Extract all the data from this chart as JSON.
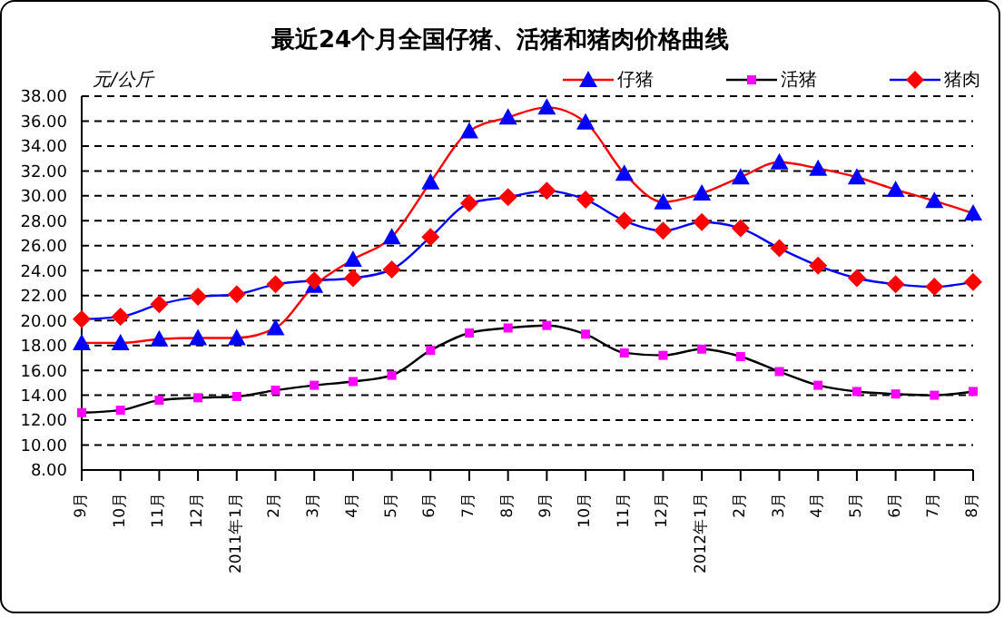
{
  "chart_data": {
    "type": "line",
    "title": "最近24个月全国仔猪、活猪和猪肉价格曲线",
    "ylabel": "元/公斤",
    "categories": [
      "9月",
      "10月",
      "11月",
      "12月",
      "2011年1月",
      "2月",
      "3月",
      "4月",
      "5月",
      "6月",
      "7月",
      "8月",
      "9月",
      "10月",
      "11月",
      "12月",
      "2012年1月",
      "2月",
      "3月",
      "4月",
      "5月",
      "6月",
      "7月",
      "8月"
    ],
    "series": [
      {
        "name": "仔猪",
        "color": "#ff0000",
        "marker": "triangle",
        "colors": [
          "#0000ff",
          "#0000ff",
          "#0000ff",
          "#0000ff",
          "#0000ff",
          "#0000ff",
          "#0000ff",
          "#0000ff",
          "#0000ff",
          "#0000ff",
          "#0000ff",
          "#0000ff",
          "#0000ff",
          "#0000ff",
          "#0000ff",
          "#0000ff",
          "#0000ff",
          "#0000ff",
          "#0000ff",
          "#0000ff",
          "#0000ff",
          "#0000ff",
          "#0000ff",
          "#0000ff"
        ],
        "values": [
          18.2,
          18.2,
          18.5,
          18.6,
          18.6,
          19.4,
          22.8,
          24.9,
          26.7,
          31.1,
          35.2,
          36.3,
          37.1,
          35.9,
          31.8,
          29.5,
          30.2,
          31.5,
          32.7,
          32.2,
          31.5,
          30.5,
          29.6,
          28.6
        ]
      },
      {
        "name": "活猪",
        "color": "#000000",
        "marker": "square",
        "colors": [
          "#ff00ff",
          "#ff00ff",
          "#ff00ff",
          "#ff00ff",
          "#ff00ff",
          "#ff00ff",
          "#ff00ff",
          "#ff00ff",
          "#ff00ff",
          "#ff00ff",
          "#ff00ff",
          "#ff00ff",
          "#ff00ff",
          "#ff00ff",
          "#ff00ff",
          "#ff00ff",
          "#ff00ff",
          "#ff00ff",
          "#ff00ff",
          "#ff00ff",
          "#ff00ff",
          "#ff00ff",
          "#ff00ff",
          "#ff00ff"
        ],
        "values": [
          12.6,
          12.8,
          13.6,
          13.8,
          13.9,
          14.4,
          14.8,
          15.1,
          15.6,
          17.6,
          19.0,
          19.4,
          19.6,
          18.9,
          17.4,
          17.2,
          17.7,
          17.1,
          15.9,
          14.8,
          14.3,
          14.1,
          14.0,
          14.3
        ]
      },
      {
        "name": "猪肉",
        "color": "#0000ff",
        "marker": "diamond",
        "colors": [
          "#ff0000",
          "#ff0000",
          "#ff0000",
          "#ff0000",
          "#ff0000",
          "#ff0000",
          "#ff0000",
          "#ff0000",
          "#ff0000",
          "#ff0000",
          "#ff0000",
          "#ff0000",
          "#ff0000",
          "#ff0000",
          "#ff0000",
          "#ff0000",
          "#ff0000",
          "#ff0000",
          "#ff0000",
          "#ff0000",
          "#ff0000",
          "#ff0000",
          "#ff0000",
          "#ff0000"
        ],
        "values": [
          20.1,
          20.3,
          21.3,
          21.9,
          22.1,
          22.9,
          23.2,
          23.4,
          24.1,
          26.7,
          29.4,
          29.9,
          30.4,
          29.7,
          28.0,
          27.2,
          27.9,
          27.4,
          25.8,
          24.4,
          23.4,
          22.9,
          22.7,
          23.1
        ]
      }
    ],
    "ylim": [
      8,
      38
    ],
    "yticks": [
      {
        "value": 8,
        "label": "8.00"
      },
      {
        "value": 10,
        "label": "10.00"
      },
      {
        "value": 12,
        "label": "12.00"
      },
      {
        "value": 14,
        "label": "14.00"
      },
      {
        "value": 16,
        "label": "16.00"
      },
      {
        "value": 18,
        "label": "18.00"
      },
      {
        "value": 20,
        "label": "20.00"
      },
      {
        "value": 22,
        "label": "22.00"
      },
      {
        "value": 24,
        "label": "24.00"
      },
      {
        "value": 26,
        "label": "26.00"
      },
      {
        "value": 28,
        "label": "28.00"
      },
      {
        "value": 30,
        "label": "30.00"
      },
      {
        "value": 32,
        "label": "32.00"
      },
      {
        "value": 34,
        "label": "34.00"
      },
      {
        "value": 36,
        "label": "36.00"
      },
      {
        "value": 38,
        "label": "38.00"
      }
    ],
    "grid": "y",
    "legend": "top right",
    "line_style": "solid"
  }
}
